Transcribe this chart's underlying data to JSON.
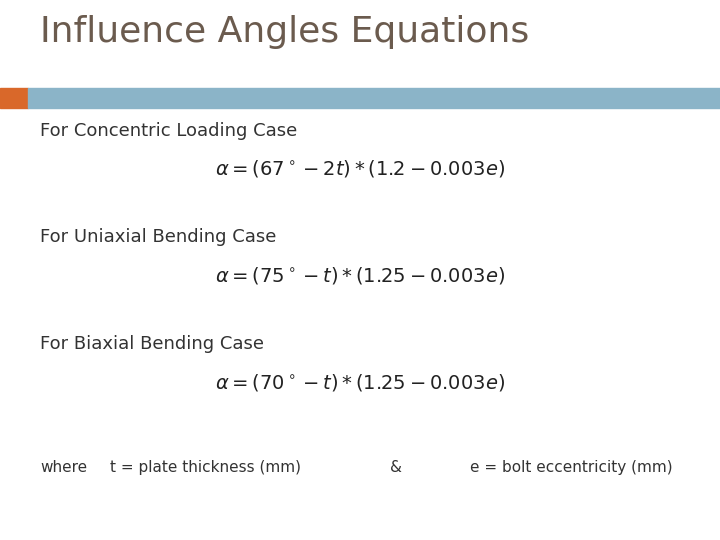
{
  "title": "Influence Angles Equations",
  "title_color": "#6B5B4E",
  "title_fontsize": 26,
  "header_bar_color": "#8BB4C8",
  "header_bar_left_color": "#D9682A",
  "bg_color": "#FFFFFF",
  "label1": "For Concentric Loading Case",
  "label2": "For Uniaxial Bending Case",
  "label3": "For Biaxial Bending Case",
  "label_fontsize": 13,
  "label_color": "#333333",
  "eq1": "$\\alpha = (67^\\circ - 2t) * (1.2 - 0.003e)$",
  "eq2": "$\\alpha = (75^\\circ - t) * (1.25 - 0.003e)$",
  "eq3": "$\\alpha = (70^\\circ - t) * (1.25 - 0.003e)$",
  "eq_fontsize": 14,
  "eq_color": "#222222",
  "footer_text1": "where",
  "footer_text2": "t = plate thickness (mm)",
  "footer_text3": "&",
  "footer_text4": "e = bolt eccentricity (mm)",
  "footer_fontsize": 11,
  "footer_color": "#333333"
}
